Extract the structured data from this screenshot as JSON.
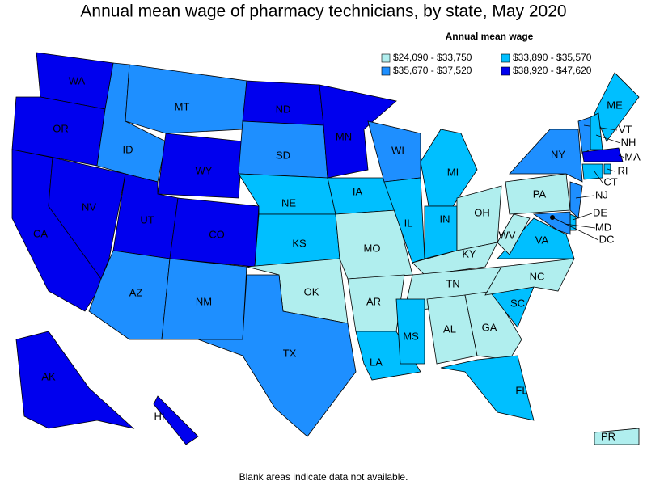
{
  "title": "Annual mean wage of pharmacy technicians, by state, May 2020",
  "legend": {
    "title": "Annual mean wage",
    "items": [
      {
        "label": "$24,090 - $33,750",
        "color": "#b0eeee"
      },
      {
        "label": "$33,890 - $35,570",
        "color": "#00bfff"
      },
      {
        "label": "$35,670 - $37,520",
        "color": "#1e8fff"
      },
      {
        "label": "$38,920 - $47,620",
        "color": "#0000ee"
      }
    ]
  },
  "states": [
    {
      "label": "WA",
      "color": "#0000ee"
    },
    {
      "label": "OR",
      "color": "#0000ee"
    },
    {
      "label": "CA",
      "color": "#0000ee"
    },
    {
      "label": "NV",
      "color": "#0000ee"
    },
    {
      "label": "ID",
      "color": "#1e8fff"
    },
    {
      "label": "MT",
      "color": "#1e8fff"
    },
    {
      "label": "WY",
      "color": "#0000ee"
    },
    {
      "label": "UT",
      "color": "#0000ee"
    },
    {
      "label": "CO",
      "color": "#0000ee"
    },
    {
      "label": "AZ",
      "color": "#1e8fff"
    },
    {
      "label": "NM",
      "color": "#1e8fff"
    },
    {
      "label": "ND",
      "color": "#0000ee"
    },
    {
      "label": "SD",
      "color": "#1e8fff"
    },
    {
      "label": "NE",
      "color": "#00bfff"
    },
    {
      "label": "KS",
      "color": "#00bfff"
    },
    {
      "label": "OK",
      "color": "#b0eeee"
    },
    {
      "label": "TX",
      "color": "#1e8fff"
    },
    {
      "label": "MN",
      "color": "#0000ee"
    },
    {
      "label": "IA",
      "color": "#00bfff"
    },
    {
      "label": "MO",
      "color": "#b0eeee"
    },
    {
      "label": "AR",
      "color": "#b0eeee"
    },
    {
      "label": "LA",
      "color": "#00bfff"
    },
    {
      "label": "WI",
      "color": "#1e8fff"
    },
    {
      "label": "IL",
      "color": "#00bfff"
    },
    {
      "label": "MI",
      "color": "#00bfff"
    },
    {
      "label": "IN",
      "color": "#00bfff"
    },
    {
      "label": "OH",
      "color": "#b0eeee"
    },
    {
      "label": "KY",
      "color": "#b0eeee"
    },
    {
      "label": "TN",
      "color": "#b0eeee"
    },
    {
      "label": "MS",
      "color": "#00bfff"
    },
    {
      "label": "AL",
      "color": "#b0eeee"
    },
    {
      "label": "GA",
      "color": "#b0eeee"
    },
    {
      "label": "FL",
      "color": "#00bfff"
    },
    {
      "label": "SC",
      "color": "#00bfff"
    },
    {
      "label": "NC",
      "color": "#b0eeee"
    },
    {
      "label": "VA",
      "color": "#00bfff"
    },
    {
      "label": "WV",
      "color": "#b0eeee"
    },
    {
      "label": "PA",
      "color": "#b0eeee"
    },
    {
      "label": "NY",
      "color": "#1e8fff"
    },
    {
      "label": "ME",
      "color": "#00bfff"
    },
    {
      "label": "VT",
      "color": "#1e8fff"
    },
    {
      "label": "NH",
      "color": "#00bfff"
    },
    {
      "label": "MA",
      "color": "#0000ee"
    },
    {
      "label": "CT",
      "color": "#00bfff"
    },
    {
      "label": "RI",
      "color": "#00bfff"
    },
    {
      "label": "NJ",
      "color": "#1e8fff"
    },
    {
      "label": "DE",
      "color": "#00bfff"
    },
    {
      "label": "MD",
      "color": "#1e8fff"
    },
    {
      "label": "DC",
      "color": "#000000"
    },
    {
      "label": "AK",
      "color": "#0000ee"
    },
    {
      "label": "HI",
      "color": "#0000ee"
    },
    {
      "label": "PR",
      "color": "#b0eeee"
    }
  ],
  "footnote": "Blank areas indicate data not available."
}
